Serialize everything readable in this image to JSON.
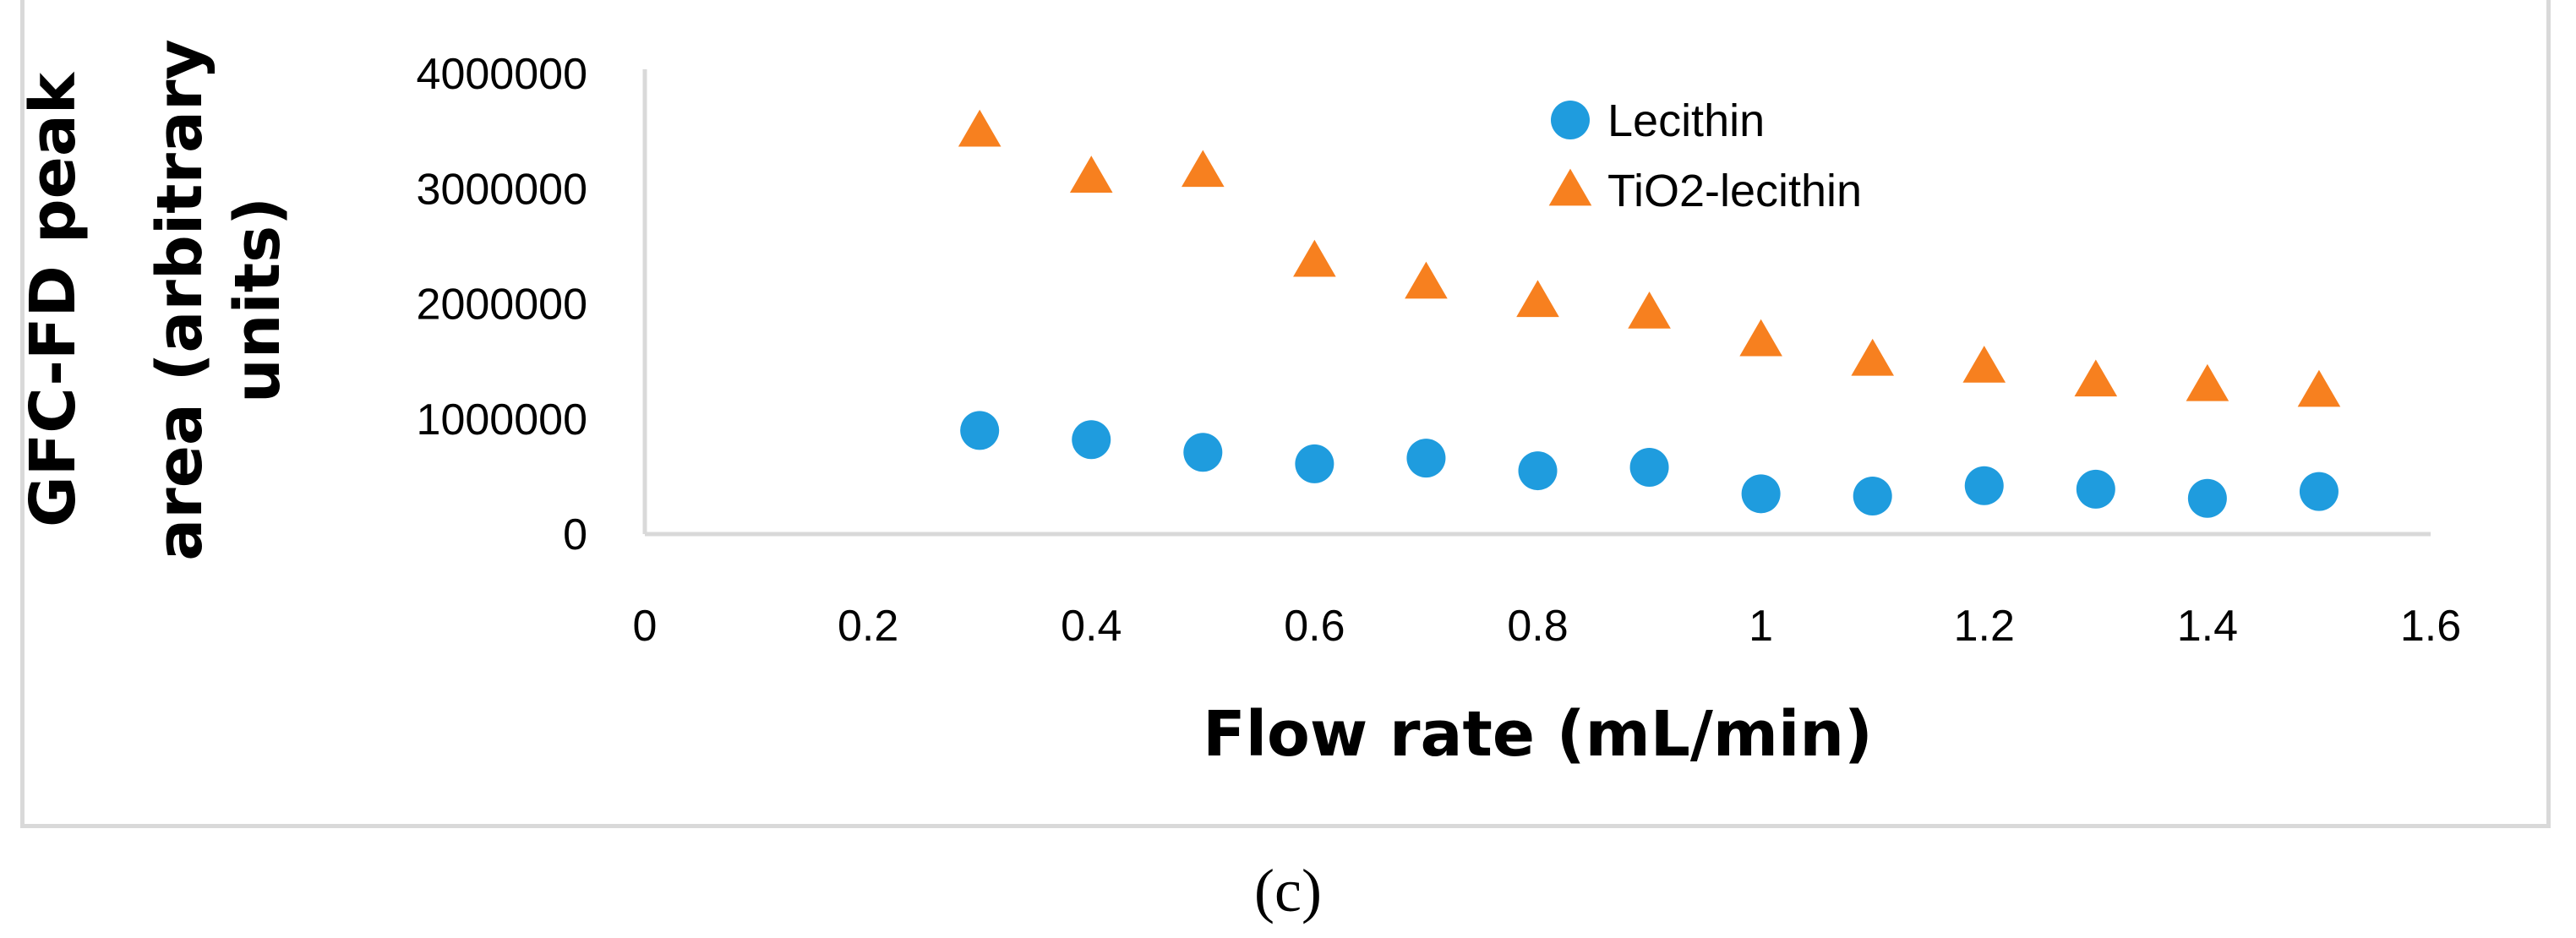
{
  "chart_data": {
    "type": "scatter",
    "xlabel": "Flow rate (mL/min)",
    "ylabel": [
      "GFC-FD peak",
      "area  (arbitrary",
      "units)"
    ],
    "xlim": [
      0,
      1.6
    ],
    "ylim": [
      0,
      4000000
    ],
    "x_ticks": [
      "0",
      "0.2",
      "0.4",
      "0.6",
      "0.8",
      "1",
      "1.2",
      "1.4",
      "1.6"
    ],
    "y_ticks": [
      "0",
      "1000000",
      "2000000",
      "3000000",
      "4000000"
    ],
    "grid": false,
    "legend_position": "top-right",
    "series": [
      {
        "name": "Lecithin",
        "marker": "circle",
        "color": "#1f9cde",
        "x": [
          0.3,
          0.4,
          0.5,
          0.6,
          0.7,
          0.8,
          0.9,
          1.0,
          1.1,
          1.2,
          1.3,
          1.4,
          1.5
        ],
        "y": [
          900000,
          820000,
          710000,
          610000,
          660000,
          550000,
          580000,
          350000,
          330000,
          420000,
          390000,
          310000,
          370000
        ]
      },
      {
        "name": "TiO2-lecithin",
        "marker": "triangle",
        "color": "#f7801f",
        "x": [
          0.3,
          0.4,
          0.5,
          0.6,
          0.7,
          0.8,
          0.9,
          1.0,
          1.1,
          1.2,
          1.3,
          1.4,
          1.5
        ],
        "y": [
          3500000,
          3100000,
          3150000,
          2370000,
          2180000,
          2020000,
          1920000,
          1680000,
          1510000,
          1450000,
          1330000,
          1290000,
          1240000
        ]
      }
    ]
  },
  "panel_label": "(c)"
}
